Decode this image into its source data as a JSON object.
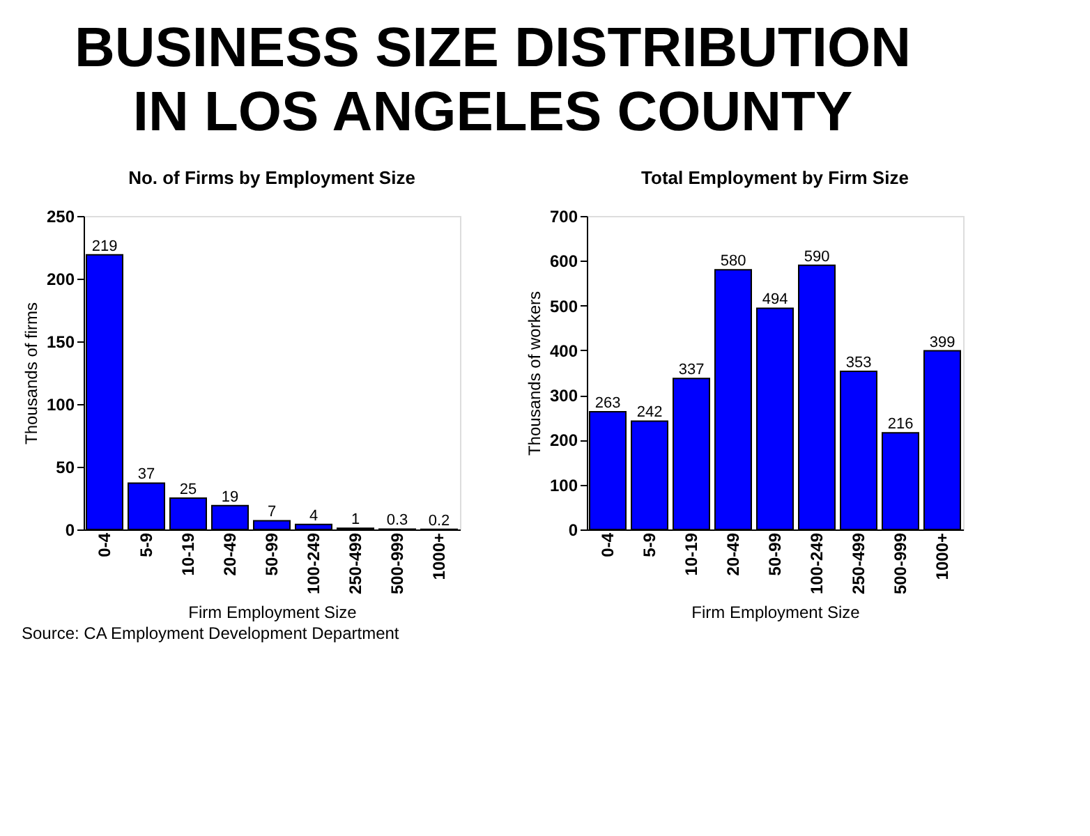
{
  "chart_data": [
    {
      "type": "other",
      "title": [
        "BUSINESS SIZE DISTRIBUTION",
        "IN LOS ANGELES COUNTY"
      ],
      "annotations": [
        "Source:  CA Employment Development Department"
      ]
    },
    {
      "type": "bar",
      "title": "No. of Firms by Employment Size",
      "xlabel": "Firm Employment Size",
      "ylabel": "Thousands of firms",
      "categories": [
        "0-4",
        "5-9",
        "10-19",
        "20-49",
        "50-99",
        "100-249",
        "250-499",
        "500-999",
        "1000+"
      ],
      "values": [
        219,
        37,
        25,
        19,
        7,
        4,
        1,
        0.3,
        0.2
      ],
      "color": "#0000ff",
      "ylim": [
        0,
        250
      ],
      "yticks": [
        0,
        50,
        100,
        150,
        200,
        250
      ],
      "data_labels": true
    },
    {
      "type": "bar",
      "title": "Total Employment by Firm Size",
      "xlabel": "Firm Employment Size",
      "ylabel": "Thousands of workers",
      "categories": [
        "0-4",
        "5-9",
        "10-19",
        "20-49",
        "50-99",
        "100-249",
        "250-499",
        "500-999",
        "1000+"
      ],
      "values": [
        263,
        242,
        337,
        580,
        494,
        590,
        353,
        216,
        399
      ],
      "color": "#0000ff",
      "ylim": [
        0,
        700
      ],
      "yticks": [
        0,
        100,
        200,
        300,
        400,
        500,
        600,
        700
      ],
      "data_labels": true
    }
  ]
}
